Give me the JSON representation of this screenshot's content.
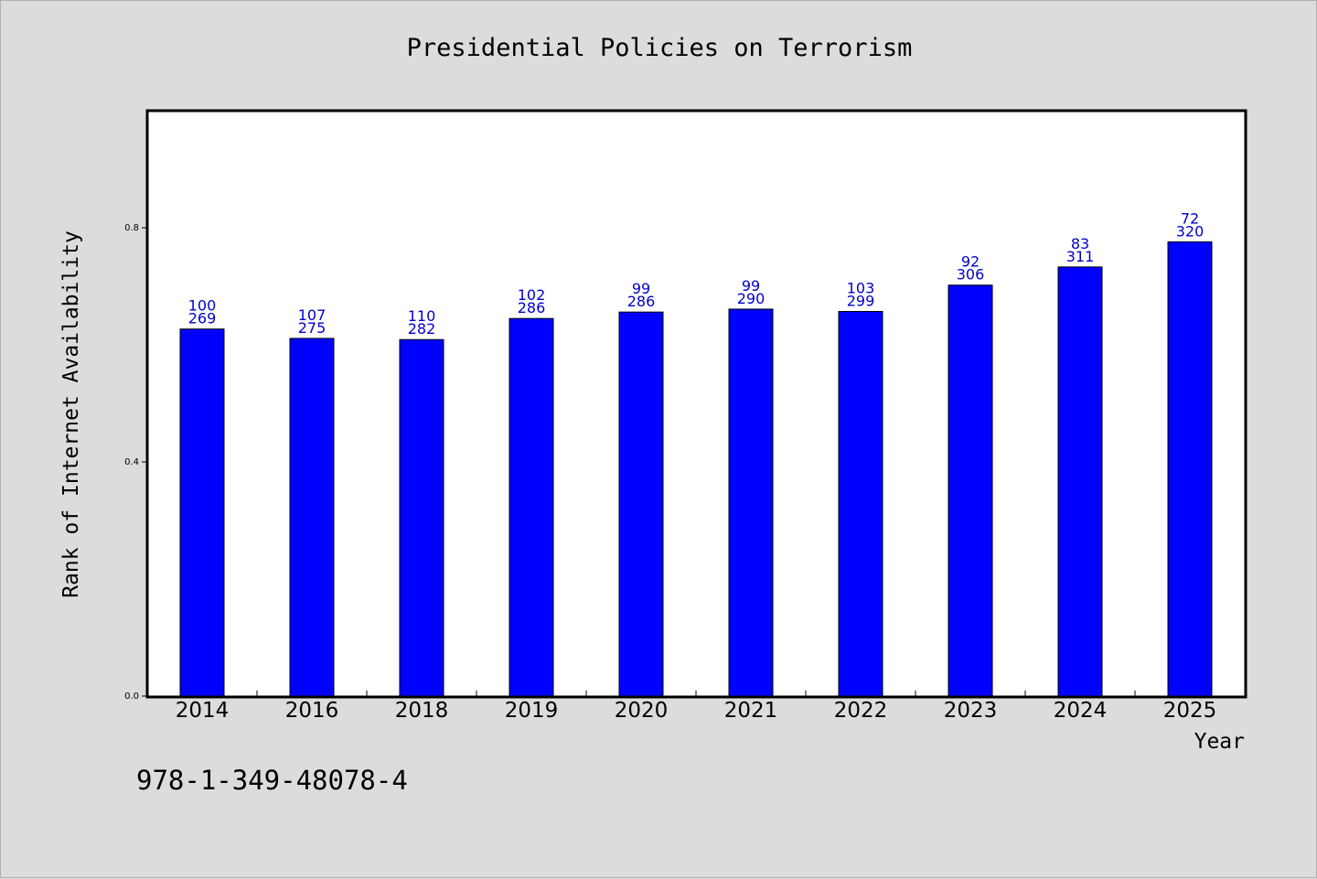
{
  "chart_data": {
    "type": "bar",
    "title": "Presidential Policies on Terrorism",
    "xlabel": "Year",
    "ylabel": "Rank of Internet Availability",
    "categories": [
      "2014",
      "2016",
      "2018",
      "2019",
      "2020",
      "2021",
      "2022",
      "2023",
      "2024",
      "2025"
    ],
    "values": [
      0.627,
      0.611,
      0.609,
      0.645,
      0.656,
      0.661,
      0.657,
      0.702,
      0.733,
      0.776
    ],
    "label_top": [
      "100",
      "107",
      "110",
      "102",
      "99",
      "99",
      "103",
      "92",
      "83",
      "72"
    ],
    "label_bottom": [
      "269",
      "275",
      "282",
      "286",
      "286",
      "290",
      "299",
      "306",
      "311",
      "320"
    ],
    "yticks": [
      "0.0",
      "0.4",
      "0.8"
    ],
    "ylim": [
      0,
      1.0
    ],
    "grid": false,
    "legend": "none",
    "bar_color": "#0000ff",
    "label_color": "#0000cc"
  },
  "footer": {
    "isbn": "978-1-349-48078-4"
  }
}
